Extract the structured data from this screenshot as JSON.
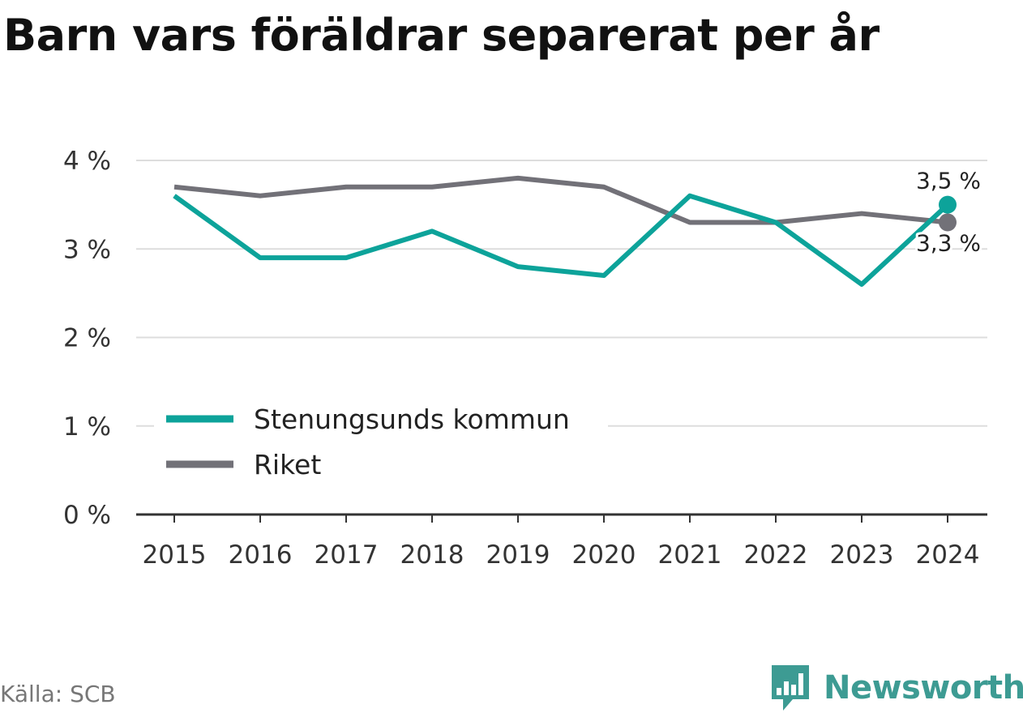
{
  "title": "Barn vars föräldrar separerat per år",
  "source": "Källa: SCB",
  "brand": {
    "name": "Newsworthy",
    "icon": "newsworthy-logo-icon",
    "color": "#3d9b93"
  },
  "chart_data": {
    "type": "line",
    "title": "Barn vars föräldrar separerat per år",
    "xlabel": "",
    "ylabel": "",
    "x": [
      "2015",
      "2016",
      "2017",
      "2018",
      "2019",
      "2020",
      "2021",
      "2022",
      "2023",
      "2024"
    ],
    "ylim": [
      0,
      4
    ],
    "yticks": [
      0,
      1,
      2,
      3,
      4
    ],
    "ytick_labels": [
      "0 %",
      "1 %",
      "2 %",
      "3 %",
      "4 %"
    ],
    "grid": true,
    "legend_position": "bottom-left",
    "series": [
      {
        "name": "Stenungsunds kommun",
        "color": "#0da39a",
        "values": [
          3.6,
          2.9,
          2.9,
          3.2,
          2.8,
          2.7,
          3.6,
          3.3,
          2.6,
          3.5
        ],
        "end_label": "3,5 %"
      },
      {
        "name": "Riket",
        "color": "#727178",
        "values": [
          3.7,
          3.6,
          3.7,
          3.7,
          3.8,
          3.7,
          3.3,
          3.3,
          3.4,
          3.3
        ],
        "end_label": "3,3 %"
      }
    ]
  }
}
